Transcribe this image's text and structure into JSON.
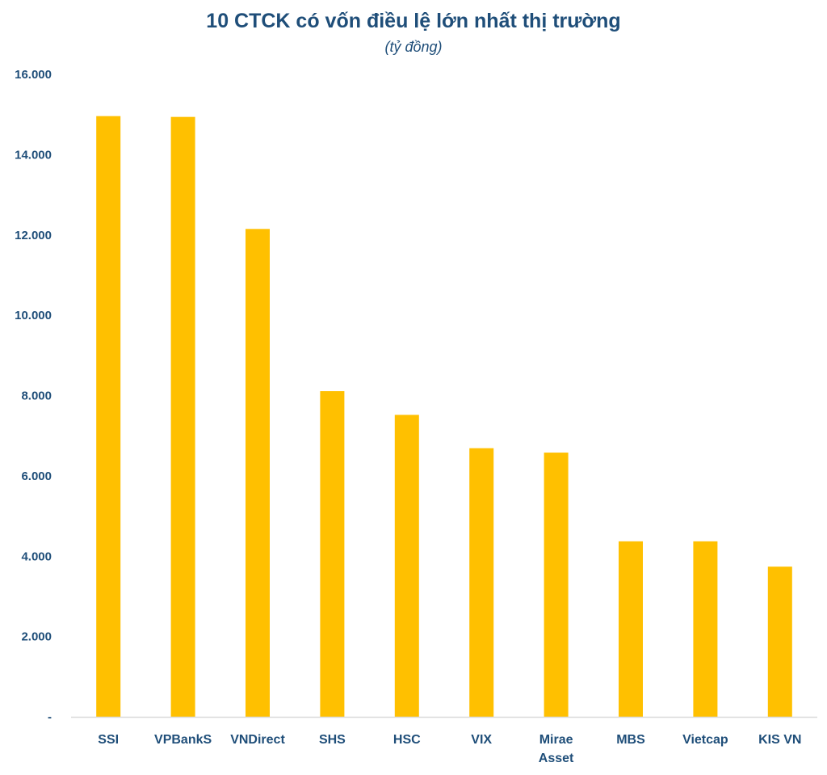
{
  "chart_data": {
    "type": "bar",
    "title": "10 CTCK có vốn điều lệ lớn nhất thị trường",
    "subtitle": "(tỷ đồng)",
    "xlabel": "",
    "ylabel": "",
    "categories": [
      "SSI",
      "VPBankS",
      "VNDirect",
      "SHS",
      "HSC",
      "VIX",
      "Mirae Asset",
      "MBS",
      "Vietcap",
      "KIS VN"
    ],
    "category_lines": [
      [
        "SSI"
      ],
      [
        "VPBankS"
      ],
      [
        "VNDirect"
      ],
      [
        "SHS"
      ],
      [
        "HSC"
      ],
      [
        "VIX"
      ],
      [
        "Mirae",
        "Asset"
      ],
      [
        "MBS"
      ],
      [
        "Vietcap"
      ],
      [
        "KIS VN"
      ]
    ],
    "values": [
      14960,
      14940,
      12150,
      8110,
      7520,
      6690,
      6580,
      4370,
      4370,
      3740
    ],
    "ylim": [
      0,
      16000
    ],
    "yticks": [
      0,
      2000,
      4000,
      6000,
      8000,
      10000,
      12000,
      14000,
      16000
    ],
    "ytick_labels": [
      "-",
      "2.000",
      "4.000",
      "6.000",
      "8.000",
      "10.000",
      "12.000",
      "14.000",
      "16.000"
    ],
    "grid": false,
    "legend": "none",
    "bar_color": "#ffc000",
    "text_color": "#1f4e79",
    "axis_color": "#d9d9d9"
  }
}
